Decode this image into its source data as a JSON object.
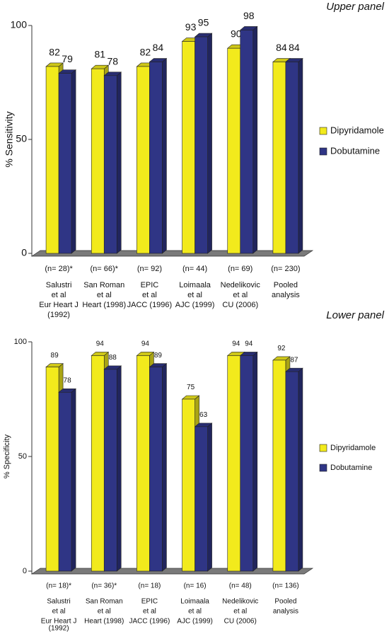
{
  "chart_data": [
    {
      "type": "bar3d",
      "title": "Upper panel",
      "y_label": "% Sensitivity",
      "categories": [
        [
          "(n= 28)*",
          "Salustri",
          "et al",
          "Eur Heart J",
          "(1992)"
        ],
        [
          "(n= 66)*",
          "San Roman",
          "et al",
          "Heart (1998)"
        ],
        [
          "(n= 92)",
          "EPIC",
          "et al",
          "JACC (1996)"
        ],
        [
          "(n= 44)",
          "Loimaala",
          "et al",
          "AJC (1999)"
        ],
        [
          "(n= 69)",
          "Nedelikovic",
          "et al",
          "CU (2006)"
        ],
        [
          "(n= 230)",
          "Pooled",
          "analysis"
        ]
      ],
      "series": [
        {
          "name": "Dipyridamole",
          "color": "#f2ea1c",
          "values": [
            82,
            81,
            82,
            93,
            90,
            84
          ]
        },
        {
          "name": "Dobutamine",
          "color": "#2f3585",
          "values": [
            79,
            78,
            84,
            95,
            98,
            84
          ]
        }
      ],
      "ylim": [
        0,
        100
      ],
      "yticks": [
        0,
        50,
        100
      ]
    },
    {
      "type": "bar3d",
      "title": "Lower panel",
      "y_label": "% Specificity",
      "categories": [
        [
          "(n= 18)*",
          "Salustri",
          "et al",
          "Eur Heart J",
          "(1992)"
        ],
        [
          "(n= 36)*",
          "San Roman",
          "et al",
          "Heart (1998)"
        ],
        [
          "(n= 18)",
          "EPIC",
          "et al",
          "JACC (1996)"
        ],
        [
          "(n= 16)",
          "Loimaala",
          "et al",
          "AJC (1999)"
        ],
        [
          "(n= 48)",
          "Nedelikovic",
          "et al",
          "CU (2006)"
        ],
        [
          "(n= 136)",
          "Pooled",
          "analysis"
        ]
      ],
      "series": [
        {
          "name": "Dipyridamole",
          "color": "#f2ea1c",
          "values": [
            89,
            94,
            94,
            75,
            94,
            92
          ]
        },
        {
          "name": "Dobutamine",
          "color": "#2f3585",
          "values": [
            78,
            88,
            89,
            63,
            94,
            87
          ]
        }
      ],
      "ylim": [
        0,
        100
      ],
      "yticks": [
        0,
        50,
        100
      ]
    }
  ]
}
